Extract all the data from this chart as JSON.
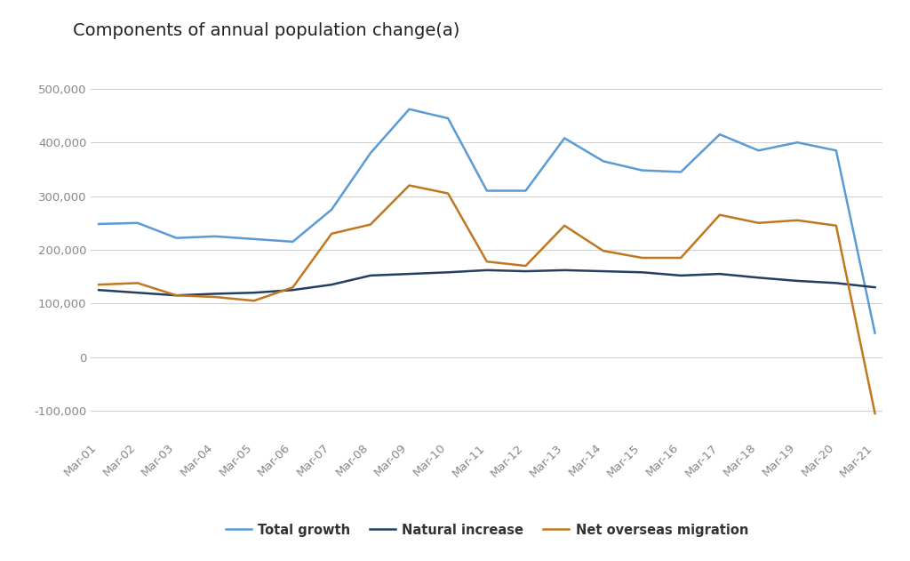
{
  "title": "Components of annual population change(a)",
  "x_labels": [
    "Mar-01",
    "Mar-02",
    "Mar-03",
    "Mar-04",
    "Mar-05",
    "Mar-06",
    "Mar-07",
    "Mar-08",
    "Mar-09",
    "Mar-10",
    "Mar-11",
    "Mar-12",
    "Mar-13",
    "Mar-14",
    "Mar-15",
    "Mar-16",
    "Mar-17",
    "Mar-18",
    "Mar-19",
    "Mar-20",
    "Mar-21"
  ],
  "total_growth": [
    248000,
    250000,
    222000,
    225000,
    220000,
    215000,
    275000,
    380000,
    462000,
    445000,
    310000,
    310000,
    408000,
    365000,
    348000,
    345000,
    415000,
    385000,
    400000,
    385000,
    45000
  ],
  "natural_increase": [
    125000,
    120000,
    115000,
    118000,
    120000,
    125000,
    135000,
    152000,
    155000,
    158000,
    162000,
    160000,
    162000,
    160000,
    158000,
    152000,
    155000,
    148000,
    142000,
    138000,
    130000
  ],
  "net_overseas_migration": [
    135000,
    138000,
    115000,
    112000,
    105000,
    130000,
    230000,
    247000,
    320000,
    305000,
    178000,
    170000,
    245000,
    198000,
    185000,
    185000,
    265000,
    250000,
    255000,
    245000,
    -105000
  ],
  "colors": {
    "total_growth": "#5B9BD5",
    "natural_increase": "#243F60",
    "net_overseas_migration": "#C07820"
  },
  "ylim": [
    -150000,
    540000
  ],
  "yticks": [
    -100000,
    0,
    100000,
    200000,
    300000,
    400000,
    500000
  ],
  "background_color": "#ffffff",
  "grid_color": "#d0d0d0",
  "legend_labels": [
    "Total growth",
    "Natural increase",
    "Net overseas migration"
  ],
  "tick_label_color": "#888888"
}
